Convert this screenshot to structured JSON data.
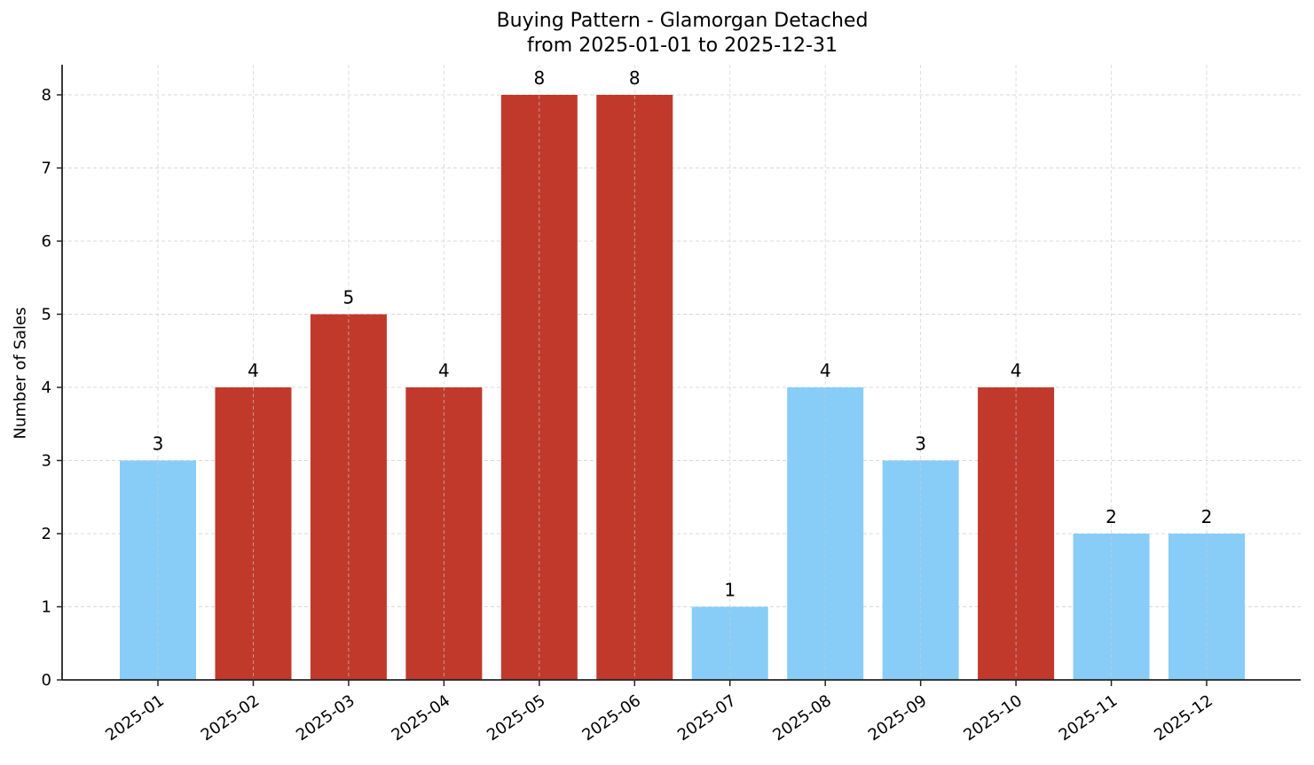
{
  "chart_data": {
    "type": "bar",
    "title": "Buying Pattern - Glamorgan Detached",
    "subtitle": "from 2025-01-01 to 2025-12-31",
    "xlabel": "",
    "ylabel": "Number of Sales",
    "categories": [
      "2025-01",
      "2025-02",
      "2025-03",
      "2025-04",
      "2025-05",
      "2025-06",
      "2025-07",
      "2025-08",
      "2025-09",
      "2025-10",
      "2025-11",
      "2025-12"
    ],
    "values": [
      3,
      4,
      5,
      4,
      8,
      8,
      1,
      4,
      3,
      4,
      2,
      2
    ],
    "bar_colors": [
      "#87cdf7",
      "#c0392b",
      "#c0392b",
      "#c0392b",
      "#c0392b",
      "#c0392b",
      "#87cdf7",
      "#87cdf7",
      "#87cdf7",
      "#c0392b",
      "#87cdf7",
      "#87cdf7"
    ],
    "ylim": [
      0,
      8.4
    ],
    "yticks": [
      0,
      1,
      2,
      3,
      4,
      5,
      6,
      7,
      8
    ],
    "grid": true,
    "legend": null,
    "data_labels": true
  },
  "colors": {
    "high": "#c0392b",
    "low": "#87cdf7",
    "grid": "#cccccc",
    "axis": "#222222"
  }
}
